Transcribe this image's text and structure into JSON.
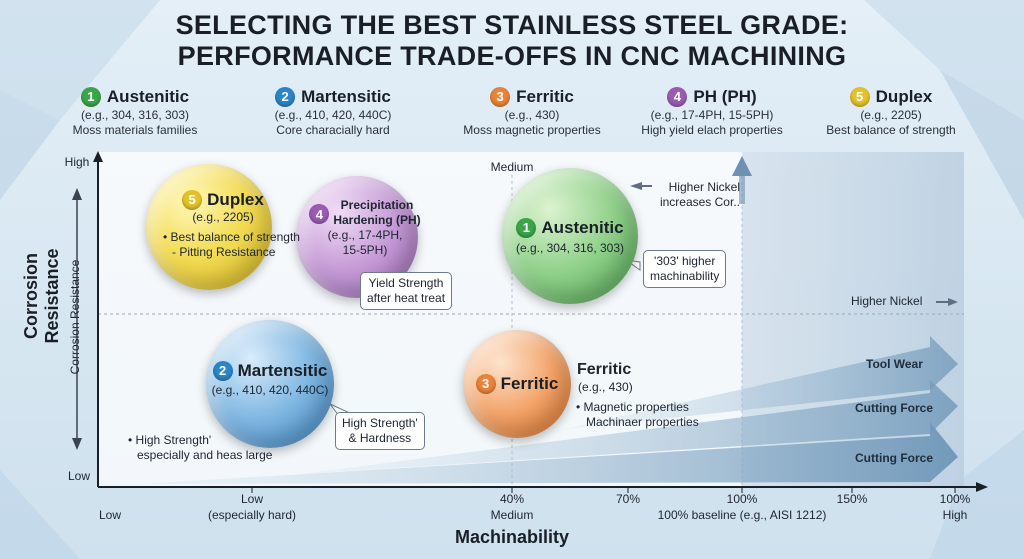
{
  "title": {
    "line1": "SELECTING THE BEST STAINLESS STEEL GRADE:",
    "line2": "PERFORMANCE TRADE-OFFS IN CNC MACHINING"
  },
  "legend": [
    {
      "num": "1",
      "name": "Austenitic",
      "examples": "(e.g., 304, 316, 303)",
      "desc": "Moss materials families",
      "color": "#3aa64a"
    },
    {
      "num": "2",
      "name": "Martensitic",
      "examples": "(e.g., 410, 420, 440C)",
      "desc": "Core characially hard",
      "color": "#2a86c8"
    },
    {
      "num": "3",
      "name": "Ferritic",
      "examples": "(e.g., 430)",
      "desc": "Moss magnetic properties",
      "color": "#e9833a"
    },
    {
      "num": "4",
      "name": "PH (PH)",
      "examples": "(e.g., 17-4PH, 15-5PH)",
      "desc": "High yield elach properties",
      "color": "#9a5bb3"
    },
    {
      "num": "5",
      "name": "Duplex",
      "examples": "(e.g., 2205)",
      "desc": "Best balance of strength",
      "color": "#e3c22a"
    }
  ],
  "bubbles": {
    "duplex": {
      "num": "5",
      "name": "Duplex",
      "examples": "(e.g., 2205)",
      "bullet1": "• Best balance of strength",
      "bullet2": "- Pitting Resistance"
    },
    "ph": {
      "num": "4",
      "name1": "Precipitation",
      "name2": "Hardening (PH)",
      "examples1": "(e.g., 17-4PH,",
      "examples2": "15-5PH)"
    },
    "austenitic": {
      "num": "1",
      "name": "Austenitic",
      "examples": "(e.g., 304, 316, 303)"
    },
    "martensitic": {
      "num": "2",
      "name": "Martensitic",
      "examples": "(e.g., 410, 420, 440C)"
    },
    "ferritic": {
      "num": "3",
      "name": "Ferritic"
    }
  },
  "callouts": {
    "ph_yield": {
      "line1": "Yield Strength",
      "line2": "after heat treat"
    },
    "austenitic_303": {
      "line1": "'303' higher",
      "line2": "machinability"
    },
    "martensitic_strength": {
      "line1": "High Strength'",
      "line2": "& Hardness"
    }
  },
  "notes": {
    "higher_nickel_cor": {
      "line1": "Higher Nickel",
      "line2": "increases Cor.."
    },
    "higher_nickel": "Higher Nickel",
    "ferritic_side_name": "Ferritic",
    "ferritic_side_examples": "(e.g., 430)",
    "ferritic_side_b1": "• Magnetic properties",
    "ferritic_side_b2": "Machinaer properties",
    "martensitic_note1": "• High Strength'",
    "martensitic_note2": "especially and heas large"
  },
  "axes": {
    "y_title": "Corrosion Resistance",
    "y_inner": "Corrosion Resistance",
    "y_high": "High",
    "y_medium": "Medium",
    "y_low": "Low",
    "x_title": "Machinability",
    "x_ticks": [
      {
        "top": "",
        "bottom": "Low"
      },
      {
        "top": "Low",
        "bottom": "(especially hard)"
      },
      {
        "top": "40%",
        "bottom": "Medium"
      },
      {
        "top": "70%",
        "bottom": ""
      },
      {
        "top": "100%",
        "bottom": "100% baseline (e.g., AISI 1212)"
      },
      {
        "top": "150%",
        "bottom": ""
      },
      {
        "top": "100%",
        "bottom": "High"
      }
    ]
  },
  "wedges": {
    "tool_wear": "Tool Wear",
    "cutting_force_1": "Cutting Force",
    "cutting_force_2": "Cutting Force"
  }
}
